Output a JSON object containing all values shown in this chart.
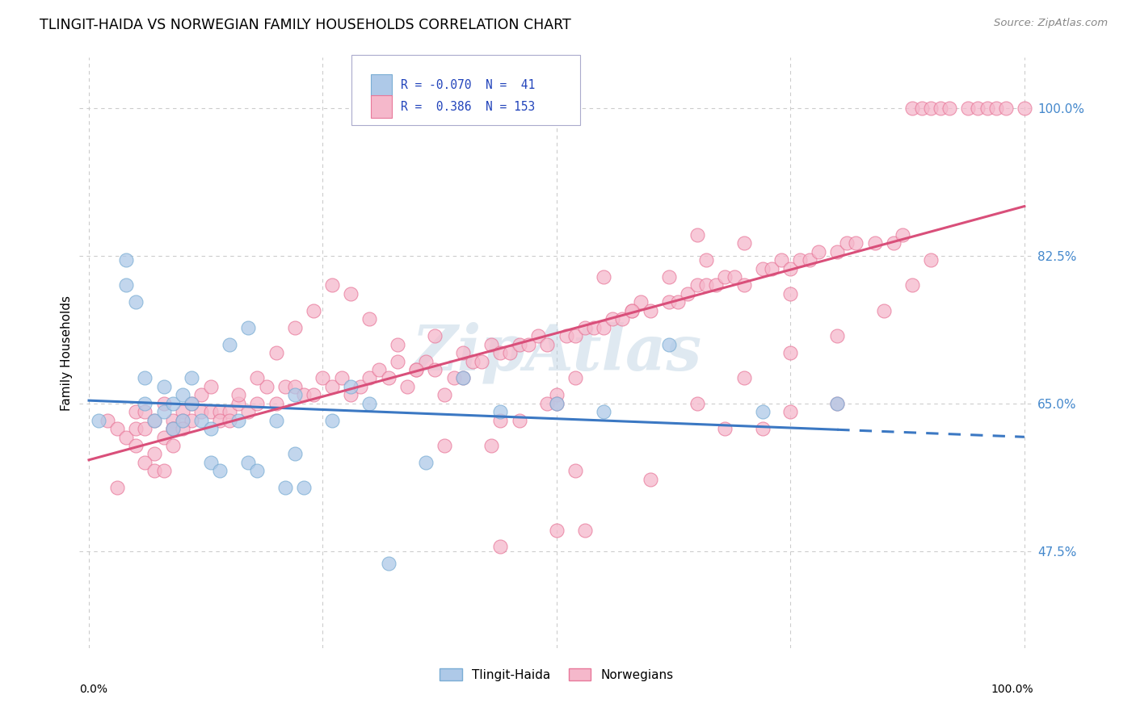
{
  "title": "TLINGIT-HAIDA VS NORWEGIAN FAMILY HOUSEHOLDS CORRELATION CHART",
  "source": "Source: ZipAtlas.com",
  "ylabel": "Family Households",
  "ytick_values": [
    0.475,
    0.65,
    0.825,
    1.0
  ],
  "ytick_labels": [
    "47.5%",
    "65.0%",
    "82.5%",
    "100.0%"
  ],
  "xlim": [
    -0.01,
    1.01
  ],
  "ylim": [
    0.36,
    1.06
  ],
  "watermark": "ZipAtlas",
  "color_blue_fill": "#aec9e8",
  "color_blue_edge": "#7aadd4",
  "color_pink_fill": "#f5b8cb",
  "color_pink_edge": "#e8789a",
  "color_blue_line": "#3b78c3",
  "color_pink_line": "#d94f7a",
  "color_grid": "#cccccc",
  "color_right_axis": "#4488cc",
  "tlingit_x": [
    0.01,
    0.04,
    0.04,
    0.05,
    0.06,
    0.06,
    0.07,
    0.08,
    0.08,
    0.09,
    0.09,
    0.1,
    0.1,
    0.11,
    0.11,
    0.12,
    0.13,
    0.13,
    0.14,
    0.15,
    0.16,
    0.17,
    0.17,
    0.18,
    0.2,
    0.21,
    0.22,
    0.22,
    0.23,
    0.26,
    0.28,
    0.3,
    0.32,
    0.36,
    0.4,
    0.44,
    0.5,
    0.55,
    0.62,
    0.72,
    0.8
  ],
  "tlingit_y": [
    0.63,
    0.82,
    0.79,
    0.77,
    0.68,
    0.65,
    0.63,
    0.64,
    0.67,
    0.62,
    0.65,
    0.66,
    0.63,
    0.68,
    0.65,
    0.63,
    0.62,
    0.58,
    0.57,
    0.72,
    0.63,
    0.74,
    0.58,
    0.57,
    0.63,
    0.55,
    0.66,
    0.59,
    0.55,
    0.63,
    0.67,
    0.65,
    0.46,
    0.58,
    0.68,
    0.64,
    0.65,
    0.64,
    0.72,
    0.64,
    0.65
  ],
  "norwegian_x": [
    0.02,
    0.03,
    0.04,
    0.05,
    0.05,
    0.06,
    0.06,
    0.07,
    0.07,
    0.08,
    0.08,
    0.09,
    0.09,
    0.09,
    0.1,
    0.1,
    0.11,
    0.12,
    0.12,
    0.13,
    0.14,
    0.15,
    0.16,
    0.17,
    0.18,
    0.19,
    0.2,
    0.21,
    0.22,
    0.23,
    0.24,
    0.25,
    0.26,
    0.27,
    0.28,
    0.29,
    0.3,
    0.31,
    0.32,
    0.33,
    0.34,
    0.35,
    0.36,
    0.37,
    0.38,
    0.39,
    0.4,
    0.41,
    0.42,
    0.43,
    0.44,
    0.45,
    0.46,
    0.47,
    0.48,
    0.49,
    0.5,
    0.51,
    0.52,
    0.53,
    0.54,
    0.55,
    0.56,
    0.57,
    0.58,
    0.59,
    0.6,
    0.62,
    0.63,
    0.64,
    0.65,
    0.66,
    0.67,
    0.68,
    0.69,
    0.7,
    0.72,
    0.73,
    0.74,
    0.75,
    0.76,
    0.77,
    0.78,
    0.8,
    0.81,
    0.82,
    0.84,
    0.86,
    0.87,
    0.88,
    0.89,
    0.9,
    0.91,
    0.92,
    0.94,
    0.95,
    0.96,
    0.97,
    0.98,
    1.0,
    0.03,
    0.05,
    0.06,
    0.07,
    0.08,
    0.09,
    0.1,
    0.11,
    0.13,
    0.14,
    0.15,
    0.16,
    0.18,
    0.2,
    0.22,
    0.24,
    0.26,
    0.28,
    0.3,
    0.33,
    0.35,
    0.37,
    0.4,
    0.43,
    0.46,
    0.49,
    0.52,
    0.55,
    0.58,
    0.62,
    0.66,
    0.7,
    0.75,
    0.52,
    0.6,
    0.65,
    0.7,
    0.75,
    0.8,
    0.85,
    0.88,
    0.9,
    0.65,
    0.68,
    0.72,
    0.75,
    0.8,
    0.53,
    0.44,
    0.5,
    0.38,
    0.44,
    0.5
  ],
  "norwegian_y": [
    0.63,
    0.62,
    0.61,
    0.64,
    0.62,
    0.62,
    0.64,
    0.59,
    0.63,
    0.65,
    0.61,
    0.63,
    0.6,
    0.62,
    0.64,
    0.63,
    0.63,
    0.66,
    0.64,
    0.64,
    0.64,
    0.64,
    0.65,
    0.64,
    0.65,
    0.67,
    0.65,
    0.67,
    0.67,
    0.66,
    0.66,
    0.68,
    0.67,
    0.68,
    0.66,
    0.67,
    0.68,
    0.69,
    0.68,
    0.7,
    0.67,
    0.69,
    0.7,
    0.69,
    0.66,
    0.68,
    0.71,
    0.7,
    0.7,
    0.72,
    0.71,
    0.71,
    0.72,
    0.72,
    0.73,
    0.72,
    0.66,
    0.73,
    0.73,
    0.74,
    0.74,
    0.74,
    0.75,
    0.75,
    0.76,
    0.77,
    0.76,
    0.77,
    0.77,
    0.78,
    0.79,
    0.79,
    0.79,
    0.8,
    0.8,
    0.79,
    0.81,
    0.81,
    0.82,
    0.81,
    0.82,
    0.82,
    0.83,
    0.83,
    0.84,
    0.84,
    0.84,
    0.84,
    0.85,
    1.0,
    1.0,
    1.0,
    1.0,
    1.0,
    1.0,
    1.0,
    1.0,
    1.0,
    1.0,
    1.0,
    0.55,
    0.6,
    0.58,
    0.57,
    0.57,
    0.62,
    0.62,
    0.65,
    0.67,
    0.63,
    0.63,
    0.66,
    0.68,
    0.71,
    0.74,
    0.76,
    0.79,
    0.78,
    0.75,
    0.72,
    0.69,
    0.73,
    0.68,
    0.6,
    0.63,
    0.65,
    0.68,
    0.8,
    0.76,
    0.8,
    0.82,
    0.84,
    0.78,
    0.57,
    0.56,
    0.65,
    0.68,
    0.71,
    0.73,
    0.76,
    0.79,
    0.82,
    0.85,
    0.62,
    0.62,
    0.64,
    0.65,
    0.5,
    0.48,
    0.5,
    0.6,
    0.63,
    0.65
  ]
}
